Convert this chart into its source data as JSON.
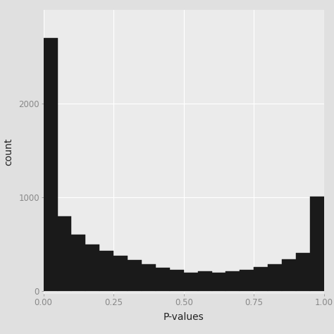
{
  "bin_heights": [
    2700,
    800,
    600,
    500,
    430,
    380,
    330,
    290,
    250,
    225,
    200,
    210,
    200,
    215,
    230,
    260,
    290,
    340,
    410,
    1010
  ],
  "bin_width": 0.05,
  "bar_color": "#1a1a1a",
  "bar_edge_color": "#1a1a1a",
  "panel_background_color": "#ebebeb",
  "figure_background_color": "#e0e0e0",
  "grid_color": "#ffffff",
  "xlabel": "P-values",
  "ylabel": "count",
  "xlim": [
    0.0,
    1.0
  ],
  "ylim": [
    -30,
    3000
  ],
  "xticks": [
    0.0,
    0.25,
    0.5,
    0.75,
    1.0
  ],
  "yticks": [
    0,
    1000,
    2000
  ],
  "xlabel_fontsize": 10,
  "ylabel_fontsize": 10,
  "tick_fontsize": 8.5,
  "tick_color": "#888888",
  "label_color": "#222222"
}
